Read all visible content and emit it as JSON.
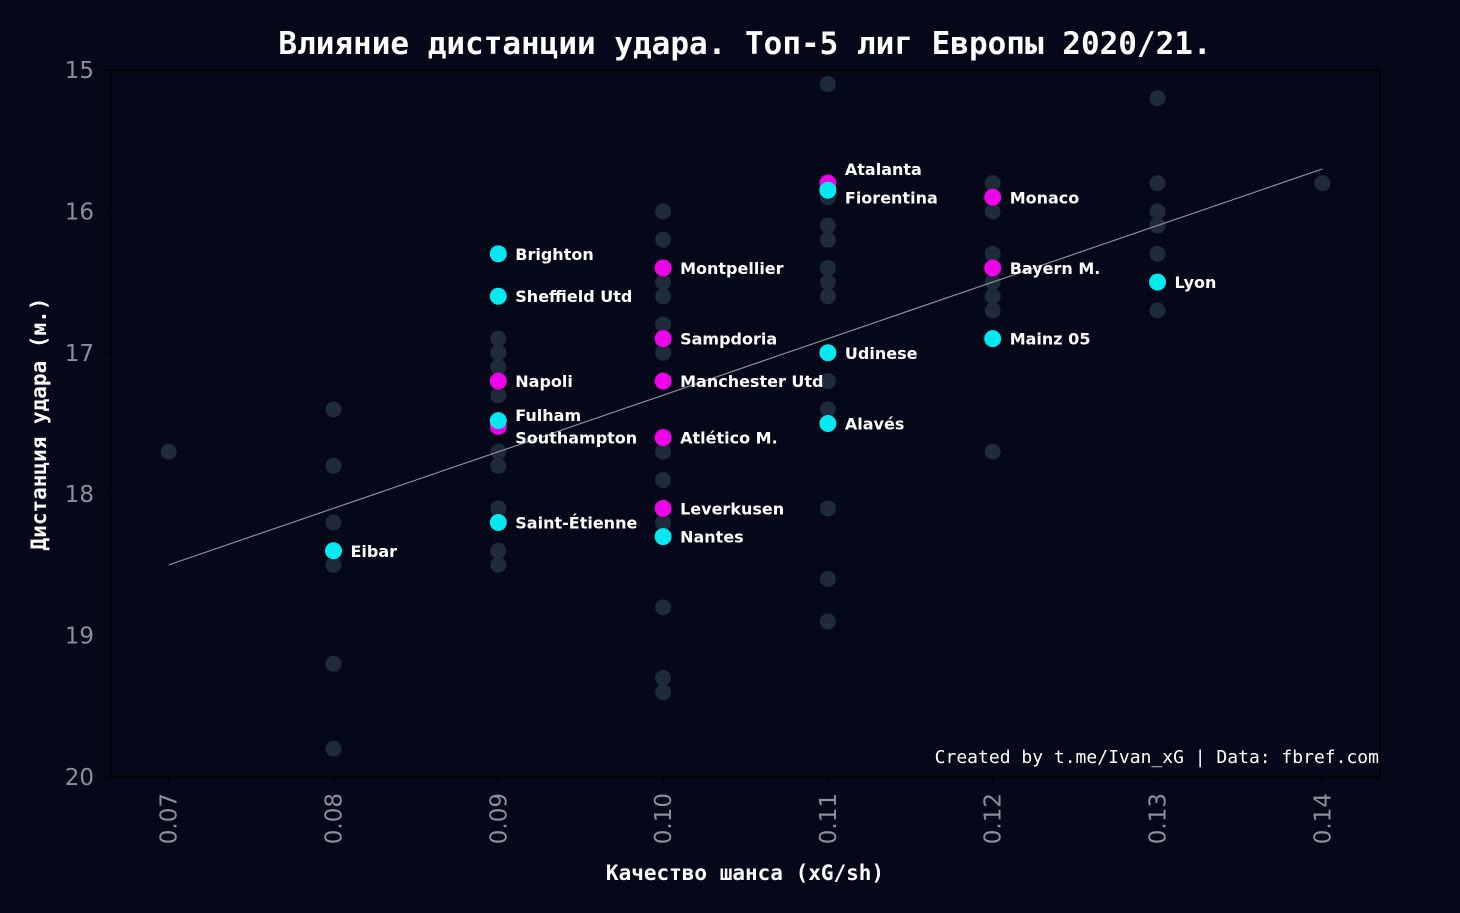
{
  "chart_data": {
    "type": "scatter",
    "title": "Влияние дистанции удара. Топ-5 лиг Европы 2020/21.",
    "xlabel": "Качество шанса (xG/sh)",
    "ylabel": "Дистанция удара (м.)",
    "xlim": [
      0.0665,
      0.1435
    ],
    "ylim": [
      15,
      20
    ],
    "y_inverted": true,
    "x_ticks": [
      "0.07",
      "0.08",
      "0.09",
      "0.10",
      "0.11",
      "0.12",
      "0.13",
      "0.14"
    ],
    "y_ticks": [
      "15",
      "16",
      "17",
      "18",
      "19",
      "20"
    ],
    "credit": "Created by t.me/Ivan_xG | Data: fbref.com",
    "colors": {
      "background": "#050819",
      "other_teams": "#1e2b38",
      "highlight_cyan": "#00e8f0",
      "highlight_magenta": "#ee00e8",
      "trend_line": "#8c8c96"
    },
    "trend_line": {
      "x": [
        0.07,
        0.14
      ],
      "y": [
        18.5,
        15.7
      ]
    },
    "background_points": [
      {
        "x": 0.07,
        "y": 17.7
      },
      {
        "x": 0.08,
        "y": 17.4
      },
      {
        "x": 0.08,
        "y": 17.8
      },
      {
        "x": 0.08,
        "y": 18.2
      },
      {
        "x": 0.08,
        "y": 18.5
      },
      {
        "x": 0.08,
        "y": 19.2
      },
      {
        "x": 0.08,
        "y": 19.8
      },
      {
        "x": 0.09,
        "y": 16.9
      },
      {
        "x": 0.09,
        "y": 17.0
      },
      {
        "x": 0.09,
        "y": 17.1
      },
      {
        "x": 0.09,
        "y": 17.3
      },
      {
        "x": 0.09,
        "y": 17.7
      },
      {
        "x": 0.09,
        "y": 17.8
      },
      {
        "x": 0.09,
        "y": 18.1
      },
      {
        "x": 0.09,
        "y": 18.4
      },
      {
        "x": 0.09,
        "y": 18.5
      },
      {
        "x": 0.1,
        "y": 16.0
      },
      {
        "x": 0.1,
        "y": 16.2
      },
      {
        "x": 0.1,
        "y": 16.5
      },
      {
        "x": 0.1,
        "y": 16.6
      },
      {
        "x": 0.1,
        "y": 16.8
      },
      {
        "x": 0.1,
        "y": 17.0
      },
      {
        "x": 0.1,
        "y": 17.7
      },
      {
        "x": 0.1,
        "y": 17.9
      },
      {
        "x": 0.1,
        "y": 18.2
      },
      {
        "x": 0.1,
        "y": 18.8
      },
      {
        "x": 0.1,
        "y": 19.3
      },
      {
        "x": 0.1,
        "y": 19.4
      },
      {
        "x": 0.11,
        "y": 15.1
      },
      {
        "x": 0.11,
        "y": 15.9
      },
      {
        "x": 0.11,
        "y": 16.1
      },
      {
        "x": 0.11,
        "y": 16.2
      },
      {
        "x": 0.11,
        "y": 16.4
      },
      {
        "x": 0.11,
        "y": 16.5
      },
      {
        "x": 0.11,
        "y": 16.6
      },
      {
        "x": 0.11,
        "y": 17.2
      },
      {
        "x": 0.11,
        "y": 17.4
      },
      {
        "x": 0.11,
        "y": 18.1
      },
      {
        "x": 0.11,
        "y": 18.6
      },
      {
        "x": 0.11,
        "y": 18.9
      },
      {
        "x": 0.12,
        "y": 15.8
      },
      {
        "x": 0.12,
        "y": 16.0
      },
      {
        "x": 0.12,
        "y": 16.3
      },
      {
        "x": 0.12,
        "y": 16.5
      },
      {
        "x": 0.12,
        "y": 16.6
      },
      {
        "x": 0.12,
        "y": 16.7
      },
      {
        "x": 0.12,
        "y": 17.7
      },
      {
        "x": 0.13,
        "y": 15.2
      },
      {
        "x": 0.13,
        "y": 15.8
      },
      {
        "x": 0.13,
        "y": 16.0
      },
      {
        "x": 0.13,
        "y": 16.1
      },
      {
        "x": 0.13,
        "y": 16.3
      },
      {
        "x": 0.13,
        "y": 16.7
      },
      {
        "x": 0.14,
        "y": 15.8
      }
    ],
    "highlighted": [
      {
        "name": "Atalanta",
        "x": 0.11,
        "y": 15.8,
        "color": "magenta",
        "label_dy": -0.1
      },
      {
        "name": "Fiorentina",
        "x": 0.11,
        "y": 15.85,
        "color": "cyan",
        "label_dy": 0.05
      },
      {
        "name": "Monaco",
        "x": 0.12,
        "y": 15.9,
        "color": "magenta",
        "label_dy": 0
      },
      {
        "name": "Brighton",
        "x": 0.09,
        "y": 16.3,
        "color": "cyan",
        "label_dy": 0
      },
      {
        "name": "Sheffield Utd",
        "x": 0.09,
        "y": 16.6,
        "color": "cyan",
        "label_dy": 0
      },
      {
        "name": "Montpellier",
        "x": 0.1,
        "y": 16.4,
        "color": "magenta",
        "label_dy": 0
      },
      {
        "name": "Bayern M.",
        "x": 0.12,
        "y": 16.4,
        "color": "magenta",
        "label_dy": 0
      },
      {
        "name": "Lyon",
        "x": 0.13,
        "y": 16.5,
        "color": "cyan",
        "label_dy": 0
      },
      {
        "name": "Sampdoria",
        "x": 0.1,
        "y": 16.9,
        "color": "magenta",
        "label_dy": 0
      },
      {
        "name": "Mainz 05",
        "x": 0.12,
        "y": 16.9,
        "color": "cyan",
        "label_dy": 0
      },
      {
        "name": "Udinese",
        "x": 0.11,
        "y": 17.0,
        "color": "cyan",
        "label_dy": 0
      },
      {
        "name": "Napoli",
        "x": 0.09,
        "y": 17.2,
        "color": "magenta",
        "label_dy": 0
      },
      {
        "name": "Manchester Utd",
        "x": 0.1,
        "y": 17.2,
        "color": "magenta",
        "label_dy": 0
      },
      {
        "name": "Southampton",
        "x": 0.09,
        "y": 17.52,
        "color": "magenta",
        "label_dy": 0.08
      },
      {
        "name": "Fulham",
        "x": 0.09,
        "y": 17.48,
        "color": "cyan",
        "label_dy": -0.04
      },
      {
        "name": "Alavés",
        "x": 0.11,
        "y": 17.5,
        "color": "cyan",
        "label_dy": 0
      },
      {
        "name": "Atlético M.",
        "x": 0.1,
        "y": 17.6,
        "color": "magenta",
        "label_dy": 0
      },
      {
        "name": "Leverkusen",
        "x": 0.1,
        "y": 18.1,
        "color": "magenta",
        "label_dy": 0
      },
      {
        "name": "Saint-Étienne",
        "x": 0.09,
        "y": 18.2,
        "color": "cyan",
        "label_dy": 0
      },
      {
        "name": "Nantes",
        "x": 0.1,
        "y": 18.3,
        "color": "cyan",
        "label_dy": 0
      },
      {
        "name": "Eibar",
        "x": 0.08,
        "y": 18.4,
        "color": "cyan",
        "label_dy": 0
      }
    ]
  }
}
